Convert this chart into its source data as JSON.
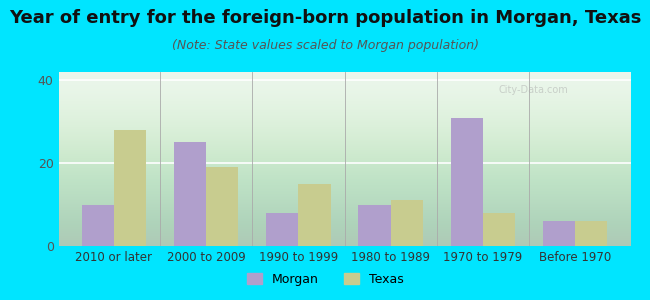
{
  "title": "Year of entry for the foreign-born population in Morgan, Texas",
  "subtitle": "(Note: State values scaled to Morgan population)",
  "categories": [
    "2010 or later",
    "2000 to 2009",
    "1990 to 1999",
    "1980 to 1989",
    "1970 to 1979",
    "Before 1970"
  ],
  "morgan_values": [
    10,
    25,
    8,
    10,
    31,
    6
  ],
  "texas_values": [
    28,
    19,
    15,
    11,
    8,
    6
  ],
  "morgan_color": "#b09fcc",
  "texas_color": "#c8cc8f",
  "background_outer": "#00e5ff",
  "ylim": [
    0,
    42
  ],
  "yticks": [
    0,
    20,
    40
  ],
  "bar_width": 0.35,
  "title_fontsize": 13,
  "subtitle_fontsize": 9
}
